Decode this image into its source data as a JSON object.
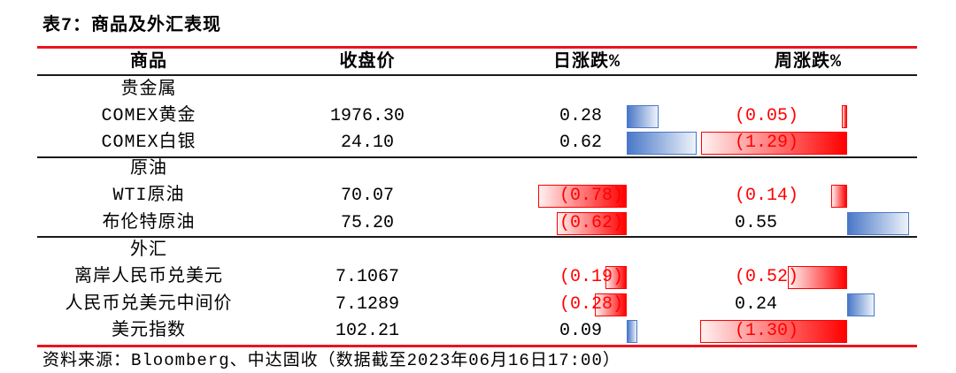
{
  "title": "表7：商品及外汇表现",
  "columns": {
    "commodity": "商品",
    "close_price": "收盘价",
    "daily_change": "日涨跌%",
    "weekly_change": "周涨跌%"
  },
  "groups": [
    {
      "category": "贵金属",
      "rows": [
        {
          "name": "COMEX黄金",
          "close": "1976.30",
          "daily": "0.28",
          "weekly": "(0.05)"
        },
        {
          "name": "COMEX白银",
          "close": "24.10",
          "daily": "0.62",
          "weekly": "(1.29)"
        }
      ]
    },
    {
      "category": "原油",
      "rows": [
        {
          "name": "WTI原油",
          "close": "70.07",
          "daily": "(0.78)",
          "weekly": "(0.14)"
        },
        {
          "name": "布伦特原油",
          "close": "75.20",
          "daily": "(0.62)",
          "weekly": "0.55"
        }
      ]
    },
    {
      "category": "外汇",
      "rows": [
        {
          "name": "离岸人民币兑美元",
          "close": "7.1067",
          "daily": "(0.19)",
          "weekly": "(0.52)"
        },
        {
          "name": "人民币兑美元中间价",
          "close": "7.1289",
          "daily": "(0.28)",
          "weekly": "0.24"
        },
        {
          "name": "美元指数",
          "close": "102.21",
          "daily": "0.09",
          "weekly": "(1.30)"
        }
      ]
    }
  ],
  "source": "资料来源：Bloomberg、中达固收（数据截至2023年06月16日17:00）",
  "colors": {
    "rule_red": "#E8141E",
    "negative_text": "#FF0000",
    "negative_bar": "#FF0000",
    "positive_bar": "#4A78C8"
  }
}
